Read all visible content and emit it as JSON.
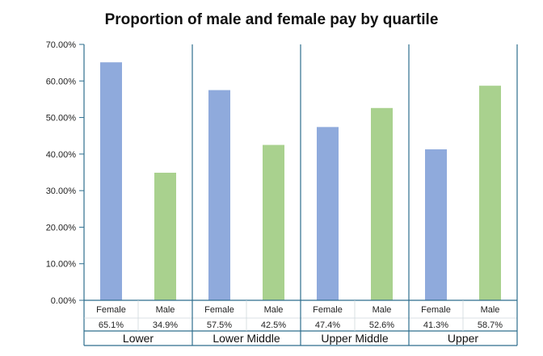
{
  "chart_data": {
    "type": "bar",
    "title": "Proportion of male and female pay by quartile",
    "xlabel": "",
    "ylabel": "",
    "ylim": [
      0,
      70
    ],
    "yticks": [
      "0.00%",
      "10.00%",
      "20.00%",
      "30.00%",
      "40.00%",
      "50.00%",
      "60.00%",
      "70.00%"
    ],
    "grid": false,
    "legend": "none",
    "groups": [
      {
        "name": "Lower",
        "bars": [
          {
            "category": "Female",
            "value": 65.1,
            "label": "65.1%",
            "color": "#8faadc"
          },
          {
            "category": "Male",
            "value": 34.9,
            "label": "34.9%",
            "color": "#a9d18e"
          }
        ]
      },
      {
        "name": "Lower Middle",
        "bars": [
          {
            "category": "Female",
            "value": 57.5,
            "label": "57.5%",
            "color": "#8faadc"
          },
          {
            "category": "Male",
            "value": 42.5,
            "label": "42.5%",
            "color": "#a9d18e"
          }
        ]
      },
      {
        "name": "Upper Middle",
        "bars": [
          {
            "category": "Female",
            "value": 47.4,
            "label": "47.4%",
            "color": "#8faadc"
          },
          {
            "category": "Male",
            "value": 52.6,
            "label": "52.6%",
            "color": "#a9d18e"
          }
        ]
      },
      {
        "name": "Upper",
        "bars": [
          {
            "category": "Female",
            "value": 41.3,
            "label": "41.3%",
            "color": "#8faadc"
          },
          {
            "category": "Male",
            "value": 58.7,
            "label": "58.7%",
            "color": "#a9d18e"
          }
        ]
      }
    ]
  }
}
